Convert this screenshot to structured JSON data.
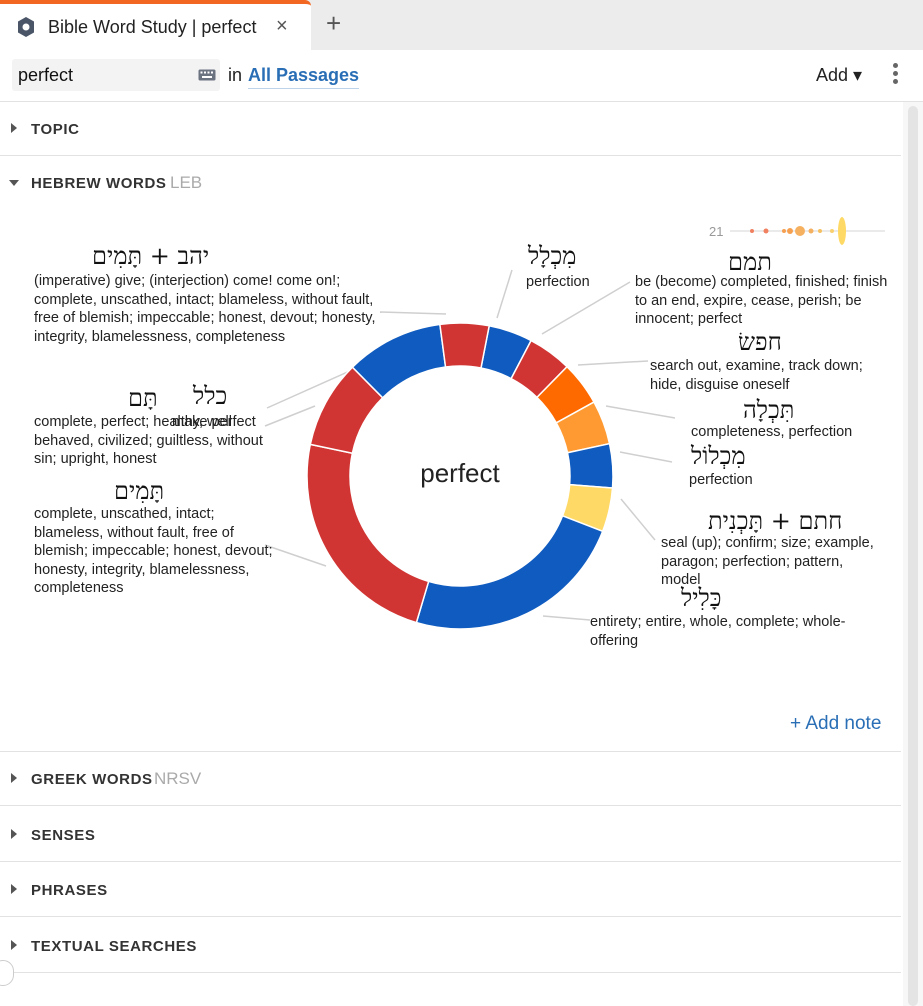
{
  "tab": {
    "title": "Bible Word Study | perfect",
    "close": "×",
    "new_tab": "+"
  },
  "search": {
    "value": "perfect",
    "in_label": "in",
    "passages": "All Passages",
    "add_label": "Add ▾"
  },
  "sections": {
    "topic": "TOPIC",
    "hebrew": "HEBREW WORDS",
    "hebrew_sub": "LEB",
    "greek": "GREEK WORDS",
    "greek_sub": "NRSV",
    "senses": "SENSES",
    "phrases": "PHRASES",
    "textual": "TEXTUAL SEARCHES"
  },
  "frequency_label": "21",
  "add_note": "+ Add note",
  "center_label": "perfect",
  "words": [
    {
      "hebrew": "יהב + תָּמִים",
      "gloss": "(imperative) give; (interjection) come! come on!; complete, unscathed, intact; blameless, without fault, free of blemish; impeccable; honest, devout; honesty, integrity, blamelessness, completeness"
    },
    {
      "hebrew": "מִכְלָל",
      "gloss": "perfection"
    },
    {
      "hebrew": "תמם",
      "gloss": "be (become) completed, finished; finish to an end, expire, cease, perish; be innocent; perfect"
    },
    {
      "hebrew": "חפשׂ",
      "gloss": "search out, examine, track down; hide, disguise oneself"
    },
    {
      "hebrew": "תִּכְלָה",
      "gloss": "completeness, perfection"
    },
    {
      "hebrew": "מִכְלוֹל",
      "gloss": "perfection"
    },
    {
      "hebrew": "חתם + תָּכְנִית",
      "gloss": "seal (up); confirm; size; example, paragon; perfection; pattern, model"
    },
    {
      "hebrew": "כָּלִיל",
      "gloss": "entirety; entire, whole, complete; whole-offering"
    },
    {
      "hebrew": "תָּמִים",
      "gloss": "complete, unscathed, intact; blameless, without fault, free of blemish; impeccable; honest, devout; honesty, integrity, blamelessness, completeness"
    },
    {
      "hebrew": "תָּם",
      "gloss": "complete, perfect; healthy, well behaved, civilized; guiltless, without sin; upright, honest"
    },
    {
      "hebrew": "כלל",
      "gloss": "make perfect"
    }
  ],
  "chart_data": {
    "type": "pie",
    "title": "perfect",
    "donut": true,
    "series": [
      {
        "label": "מִכְלָל",
        "value": 4.5,
        "color": "#0f5bbf"
      },
      {
        "label": "תמם",
        "value": 4.5,
        "color": "#d13533"
      },
      {
        "label": "חפשׂ",
        "value": 4.5,
        "color": "#ff6a00"
      },
      {
        "label": "תִּכְלָה",
        "value": 4.5,
        "color": "#ff9a33"
      },
      {
        "label": "מִכְלוֹל",
        "value": 4.5,
        "color": "#0f5bbf"
      },
      {
        "label": "חתם + תָּכְנִית",
        "value": 4.5,
        "color": "#ffd966"
      },
      {
        "label": "כָּלִיל",
        "value": 23,
        "color": "#0f5bbf"
      },
      {
        "label": "תָּמִים",
        "value": 23,
        "color": "#d13533"
      },
      {
        "label": "תָּם",
        "value": 9,
        "color": "#d13533"
      },
      {
        "label": "כלל",
        "value": 10,
        "color": "#0f5bbf"
      },
      {
        "label": "יהב + תָּמִים",
        "value": 5,
        "color": "#d13533"
      }
    ]
  },
  "colors": {
    "accent": "#f26722",
    "link": "#2a6fb6",
    "blue": "#0f5bbf",
    "red": "#d13533",
    "orange": "#ff6a00",
    "light_orange": "#ff9a33",
    "yellow": "#ffd966"
  }
}
